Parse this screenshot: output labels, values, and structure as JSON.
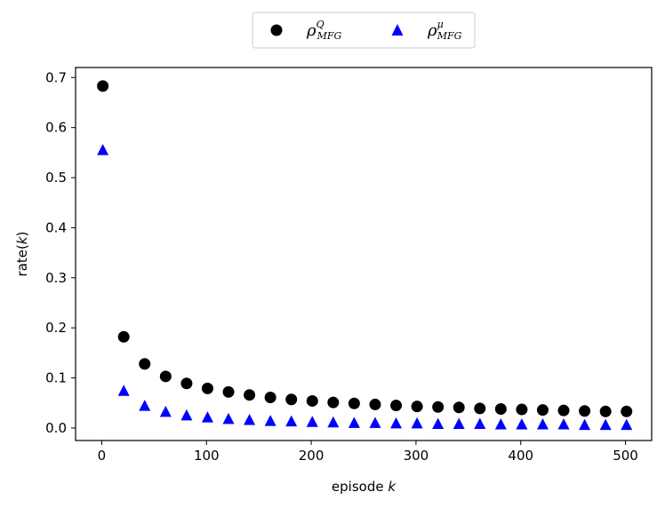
{
  "chart_data": {
    "type": "scatter",
    "xlabel": "episode",
    "xlabel_var": "k",
    "ylabel": "rate(",
    "ylabel_var": "k",
    "ylabel_close": ")",
    "xlim": [
      -25,
      525
    ],
    "ylim": [
      -0.025,
      0.72
    ],
    "x_ticks": [
      0,
      100,
      200,
      300,
      400,
      500
    ],
    "y_ticks": [
      0.0,
      0.1,
      0.2,
      0.3,
      0.4,
      0.5,
      0.6,
      0.7
    ],
    "x_tick_labels": [
      "0",
      "100",
      "200",
      "300",
      "400",
      "500"
    ],
    "y_tick_labels": [
      "0.0",
      "0.1",
      "0.2",
      "0.3",
      "0.4",
      "0.5",
      "0.6",
      "0.7"
    ],
    "grid": false,
    "legend_position": "top-center (above plot)",
    "x": [
      1,
      21,
      41,
      61,
      81,
      101,
      121,
      141,
      161,
      181,
      201,
      221,
      241,
      261,
      281,
      301,
      321,
      341,
      361,
      381,
      401,
      421,
      441,
      461,
      481,
      501
    ],
    "series": [
      {
        "name": "ρ^Q_MFG",
        "symbol": "ρ",
        "sup": "Q",
        "sub": "MFG",
        "marker": "circle",
        "color": "#000000",
        "values": [
          0.683,
          0.182,
          0.128,
          0.103,
          0.089,
          0.079,
          0.072,
          0.066,
          0.061,
          0.057,
          0.054,
          0.051,
          0.049,
          0.047,
          0.045,
          0.043,
          0.042,
          0.041,
          0.039,
          0.038,
          0.037,
          0.036,
          0.035,
          0.034,
          0.033,
          0.033
        ]
      },
      {
        "name": "ρ^μ_MFG",
        "symbol": "ρ",
        "sup": "μ",
        "sub": "MFG",
        "marker": "triangle",
        "color": "#0000ff",
        "values": [
          0.554,
          0.073,
          0.043,
          0.031,
          0.024,
          0.02,
          0.017,
          0.015,
          0.013,
          0.012,
          0.011,
          0.01,
          0.009,
          0.009,
          0.008,
          0.008,
          0.007,
          0.007,
          0.007,
          0.006,
          0.006,
          0.006,
          0.006,
          0.005,
          0.005,
          0.005
        ]
      }
    ]
  }
}
